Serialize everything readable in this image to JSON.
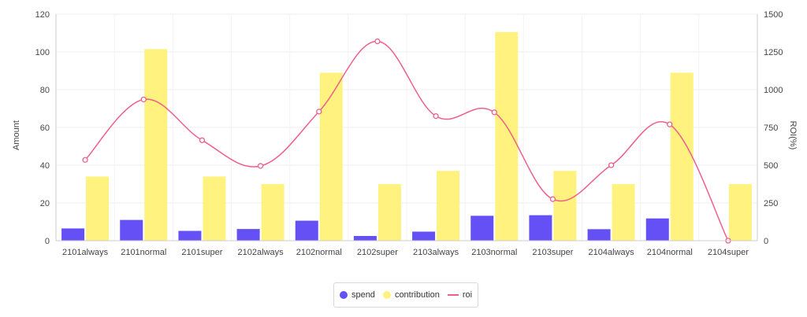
{
  "chart_data": {
    "type": "bar",
    "categories": [
      "2101always",
      "2101normal",
      "2101super",
      "2102always",
      "2102normal",
      "2102super",
      "2103always",
      "2103normal",
      "2103super",
      "2104always",
      "2104normal",
      "2104super"
    ],
    "series": [
      {
        "name": "spend",
        "type": "bar",
        "axis": "left",
        "color": "#6450f5",
        "values": [
          6.5,
          11,
          5.2,
          6.2,
          10.6,
          2.5,
          4.8,
          13.2,
          13.5,
          6.1,
          11.8,
          0
        ]
      },
      {
        "name": "contribution",
        "type": "bar",
        "axis": "left",
        "color": "#fff27e",
        "values": [
          34,
          101.5,
          34,
          30,
          89,
          30,
          37,
          110.5,
          37,
          30,
          89,
          30
        ]
      },
      {
        "name": "roi",
        "type": "line",
        "axis": "right",
        "color": "#ef5e8c",
        "values": [
          535,
          935,
          665,
          495,
          855,
          1320,
          825,
          850,
          275,
          500,
          770,
          0
        ]
      }
    ],
    "xlabel": "",
    "ylabel": "Amount",
    "y2label": "ROI(%)",
    "ylim": [
      0,
      120
    ],
    "y2lim": [
      0,
      1500
    ],
    "yticks": [
      0,
      20,
      40,
      60,
      80,
      100,
      120
    ],
    "y2ticks": [
      0,
      250,
      500,
      750,
      1000,
      1250,
      1500
    ],
    "grid": true,
    "legend_position": "bottom-center"
  }
}
